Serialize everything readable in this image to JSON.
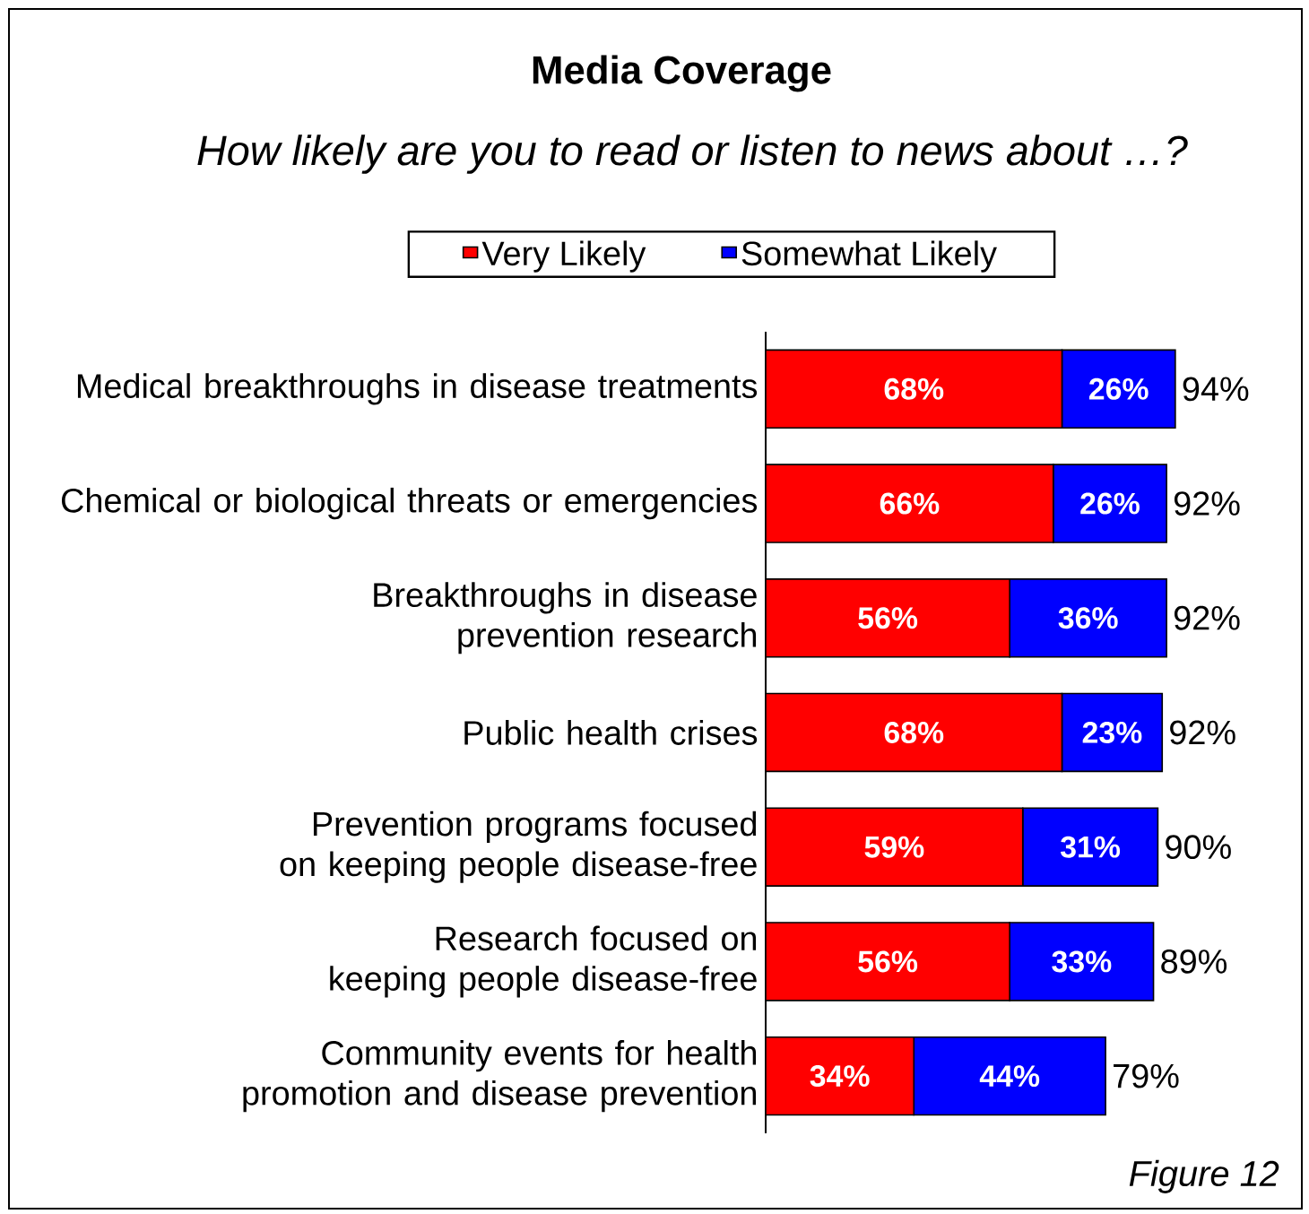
{
  "chart_data": {
    "type": "bar",
    "orientation": "horizontal",
    "stacked": true,
    "title": "Media Coverage",
    "subtitle": "How likely are you to read or listen to news about …?",
    "categories": [
      "Medical breakthroughs in disease treatments",
      "Chemical or biological threats or emergencies",
      "Breakthroughs in disease prevention research",
      "Public health crises",
      "Prevention programs focused on keeping people disease-free",
      "Research focused on keeping people disease-free",
      "Community events for health promotion and disease prevention"
    ],
    "series": [
      {
        "name": "Very Likely",
        "color": "#ff0000",
        "values": [
          68,
          66,
          56,
          68,
          59,
          56,
          34
        ],
        "value_labels": [
          "68%",
          "66%",
          "56%",
          "68%",
          "59%",
          "56%",
          "34%"
        ]
      },
      {
        "name": "Somewhat Likely",
        "color": "#0000ff",
        "values": [
          26,
          26,
          36,
          23,
          31,
          33,
          44
        ],
        "value_labels": [
          "26%",
          "26%",
          "36%",
          "23%",
          "31%",
          "33%",
          "44%"
        ]
      }
    ],
    "totals": [
      "94%",
      "92%",
      "92%",
      "92%",
      "90%",
      "89%",
      "79%"
    ],
    "legend": "top",
    "annotations": [
      "Figure 12"
    ]
  }
}
